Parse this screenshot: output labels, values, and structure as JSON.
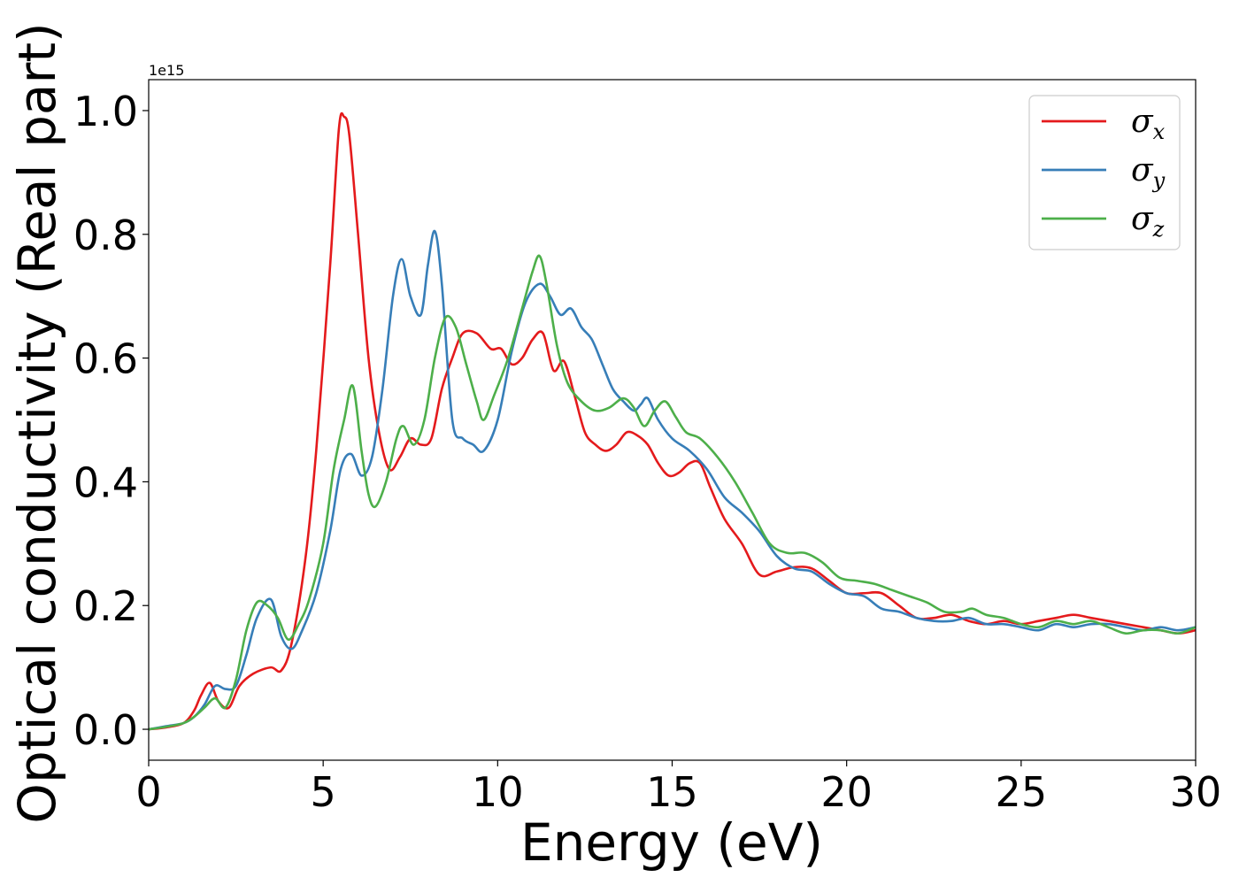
{
  "chart_data": {
    "type": "line",
    "title": "",
    "xlabel": "Energy (eV)",
    "ylabel": "Optical conductivity (Real part)",
    "y_offset_label": "1e15",
    "xlim": [
      0,
      30
    ],
    "ylim": [
      -0.05,
      1.05
    ],
    "y_scale_factor": 1000000000000000.0,
    "xticks": [
      0,
      5,
      10,
      15,
      20,
      25,
      30
    ],
    "xtick_labels": [
      "0",
      "5",
      "10",
      "15",
      "20",
      "25",
      "30"
    ],
    "yticks": [
      0.0,
      0.2,
      0.4,
      0.6,
      0.8,
      1.0
    ],
    "ytick_labels": [
      "0.0",
      "0.2",
      "0.4",
      "0.6",
      "0.8",
      "1.0"
    ],
    "grid": false,
    "legend_position": "top-right",
    "series": [
      {
        "name": "σx",
        "symbol": "σ",
        "subscript": "x",
        "color": "#e41a1c",
        "x": [
          0,
          0.5,
          1,
          1.3,
          1.5,
          1.75,
          2,
          2.3,
          2.6,
          3,
          3.5,
          3.8,
          4.1,
          4.5,
          4.8,
          5.2,
          5.45,
          5.6,
          5.75,
          6,
          6.3,
          6.6,
          6.9,
          7.2,
          7.5,
          7.8,
          8.1,
          8.4,
          8.7,
          9,
          9.4,
          9.8,
          10.1,
          10.4,
          10.7,
          11,
          11.3,
          11.6,
          11.9,
          12.2,
          12.5,
          12.8,
          13.1,
          13.4,
          13.7,
          14,
          14.3,
          14.6,
          14.9,
          15.2,
          15.5,
          15.8,
          16.1,
          16.5,
          17,
          17.5,
          18,
          18.5,
          19,
          19.5,
          20,
          20.5,
          21,
          21.5,
          22,
          22.5,
          23,
          23.5,
          24,
          24.5,
          25,
          25.5,
          26,
          26.5,
          27,
          27.5,
          28,
          28.5,
          29,
          29.5,
          30
        ],
        "y": [
          0,
          0.003,
          0.01,
          0.03,
          0.055,
          0.075,
          0.045,
          0.035,
          0.07,
          0.09,
          0.1,
          0.095,
          0.14,
          0.28,
          0.45,
          0.75,
          0.97,
          0.99,
          0.96,
          0.8,
          0.6,
          0.48,
          0.42,
          0.44,
          0.47,
          0.46,
          0.47,
          0.55,
          0.6,
          0.64,
          0.64,
          0.615,
          0.615,
          0.59,
          0.6,
          0.63,
          0.64,
          0.58,
          0.595,
          0.54,
          0.48,
          0.46,
          0.45,
          0.46,
          0.48,
          0.475,
          0.46,
          0.43,
          0.41,
          0.415,
          0.43,
          0.43,
          0.39,
          0.34,
          0.3,
          0.25,
          0.255,
          0.262,
          0.26,
          0.24,
          0.22,
          0.22,
          0.22,
          0.2,
          0.18,
          0.18,
          0.185,
          0.175,
          0.17,
          0.175,
          0.17,
          0.175,
          0.18,
          0.185,
          0.18,
          0.175,
          0.17,
          0.165,
          0.16,
          0.155,
          0.16
        ]
      },
      {
        "name": "σy",
        "symbol": "σ",
        "subscript": "y",
        "color": "#377eb8",
        "x": [
          0,
          0.5,
          1,
          1.3,
          1.6,
          1.9,
          2.2,
          2.5,
          2.8,
          3.1,
          3.5,
          3.8,
          4.1,
          4.4,
          4.8,
          5.2,
          5.5,
          5.8,
          6.1,
          6.4,
          6.7,
          7,
          7.25,
          7.5,
          7.8,
          8,
          8.2,
          8.4,
          8.7,
          9,
          9.3,
          9.6,
          10,
          10.4,
          10.8,
          11.2,
          11.5,
          11.8,
          12.1,
          12.4,
          12.7,
          13,
          13.3,
          13.6,
          13.9,
          14.1,
          14.3,
          14.6,
          15,
          15.5,
          16,
          16.5,
          17,
          17.5,
          18,
          18.5,
          19,
          19.5,
          20,
          20.5,
          21,
          21.5,
          22,
          22.5,
          23,
          23.5,
          24,
          24.5,
          25,
          25.5,
          26,
          26.5,
          27,
          27.5,
          28,
          28.5,
          29,
          29.5,
          30
        ],
        "y": [
          0,
          0.005,
          0.01,
          0.02,
          0.04,
          0.07,
          0.065,
          0.07,
          0.12,
          0.18,
          0.21,
          0.15,
          0.13,
          0.16,
          0.22,
          0.32,
          0.42,
          0.445,
          0.41,
          0.44,
          0.55,
          0.7,
          0.76,
          0.7,
          0.67,
          0.75,
          0.805,
          0.72,
          0.5,
          0.47,
          0.46,
          0.45,
          0.5,
          0.61,
          0.69,
          0.72,
          0.7,
          0.67,
          0.68,
          0.65,
          0.63,
          0.59,
          0.55,
          0.53,
          0.515,
          0.525,
          0.535,
          0.5,
          0.47,
          0.45,
          0.42,
          0.375,
          0.35,
          0.32,
          0.28,
          0.26,
          0.255,
          0.235,
          0.22,
          0.215,
          0.195,
          0.19,
          0.18,
          0.175,
          0.175,
          0.18,
          0.17,
          0.17,
          0.165,
          0.16,
          0.17,
          0.165,
          0.17,
          0.17,
          0.165,
          0.16,
          0.165,
          0.16,
          0.165
        ]
      },
      {
        "name": "σz",
        "symbol": "σ",
        "subscript": "z",
        "color": "#4daf4a",
        "x": [
          0,
          0.5,
          1,
          1.3,
          1.6,
          1.9,
          2.2,
          2.5,
          2.8,
          3.1,
          3.4,
          3.7,
          4,
          4.3,
          4.6,
          5,
          5.3,
          5.6,
          5.85,
          6.1,
          6.3,
          6.5,
          6.8,
          7.1,
          7.3,
          7.6,
          7.9,
          8.2,
          8.5,
          8.8,
          9.1,
          9.4,
          9.6,
          9.9,
          10.3,
          10.7,
          11,
          11.2,
          11.4,
          11.7,
          12,
          12.4,
          12.8,
          13.2,
          13.6,
          13.9,
          14.2,
          14.5,
          14.8,
          15.1,
          15.4,
          15.8,
          16.3,
          16.8,
          17.3,
          17.8,
          18.3,
          18.8,
          19.3,
          19.8,
          20.3,
          20.8,
          21.3,
          21.8,
          22.3,
          22.8,
          23.3,
          23.6,
          24,
          24.5,
          25,
          25.5,
          26,
          26.5,
          27,
          27.5,
          28,
          28.5,
          29,
          29.5,
          30
        ],
        "y": [
          0,
          0.004,
          0.01,
          0.02,
          0.035,
          0.05,
          0.035,
          0.08,
          0.16,
          0.205,
          0.2,
          0.18,
          0.145,
          0.17,
          0.21,
          0.3,
          0.42,
          0.5,
          0.555,
          0.45,
          0.38,
          0.36,
          0.4,
          0.47,
          0.49,
          0.46,
          0.5,
          0.6,
          0.665,
          0.65,
          0.59,
          0.53,
          0.5,
          0.54,
          0.6,
          0.68,
          0.74,
          0.765,
          0.72,
          0.62,
          0.56,
          0.53,
          0.515,
          0.52,
          0.535,
          0.52,
          0.49,
          0.515,
          0.53,
          0.505,
          0.48,
          0.47,
          0.44,
          0.4,
          0.35,
          0.3,
          0.285,
          0.285,
          0.27,
          0.245,
          0.24,
          0.235,
          0.225,
          0.215,
          0.205,
          0.19,
          0.19,
          0.195,
          0.185,
          0.18,
          0.17,
          0.165,
          0.175,
          0.17,
          0.175,
          0.165,
          0.155,
          0.16,
          0.16,
          0.155,
          0.165
        ]
      }
    ]
  }
}
